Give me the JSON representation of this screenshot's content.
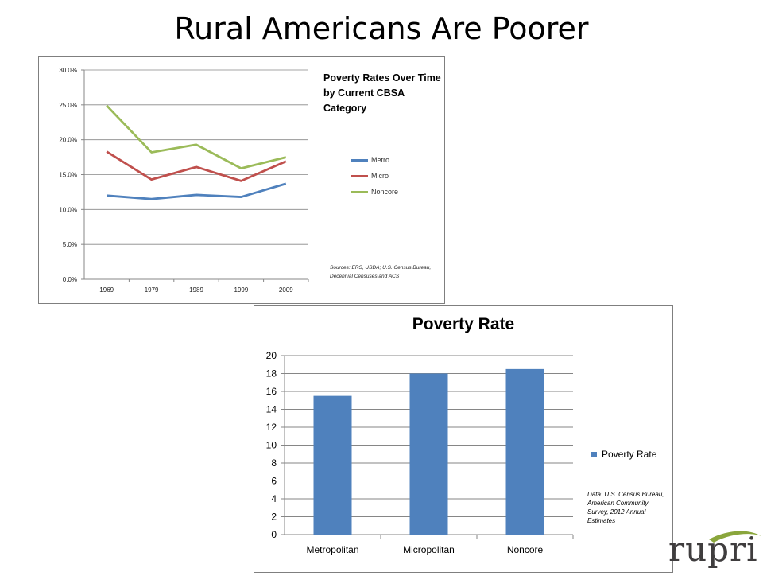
{
  "slide": {
    "title": "Rural Americans Are Poorer"
  },
  "logo": {
    "text": "rupri",
    "swoosh_color": "#8aa63c"
  },
  "chart_data": [
    {
      "type": "line",
      "title": "Poverty Rates Over Time by Current CBSA Category",
      "x": [
        "1969",
        "1979",
        "1989",
        "1999",
        "2009"
      ],
      "series": [
        {
          "name": "Metro",
          "color": "#4f81bd",
          "values": [
            12.0,
            11.5,
            12.1,
            11.8,
            13.7
          ]
        },
        {
          "name": "Micro",
          "color": "#c0504d",
          "values": [
            18.3,
            14.3,
            16.1,
            14.1,
            16.9
          ]
        },
        {
          "name": "Noncore",
          "color": "#9bbb59",
          "values": [
            24.9,
            18.2,
            19.3,
            15.9,
            17.5
          ]
        }
      ],
      "ylim": [
        0,
        30
      ],
      "yticks": [
        "0.0%",
        "5.0%",
        "10.0%",
        "15.0%",
        "20.0%",
        "25.0%",
        "30.0%"
      ],
      "grid": true,
      "legend": "right",
      "source": "Sources: ERS, USDA; U.S. Census Bureau, Decennial Censuses and ACS"
    },
    {
      "type": "bar",
      "title": "Poverty Rate",
      "categories": [
        "Metropolitan",
        "Micropolitan",
        "Noncore"
      ],
      "series": [
        {
          "name": "Poverty Rate",
          "color": "#4f81bd",
          "values": [
            15.5,
            18.0,
            18.5
          ]
        }
      ],
      "ylim": [
        0,
        20
      ],
      "yticks": [
        "0",
        "2",
        "4",
        "6",
        "8",
        "10",
        "12",
        "14",
        "16",
        "18",
        "20"
      ],
      "grid": true,
      "legend": "right",
      "source": "Data: U.S. Census Bureau, American Community Survey, 2012 Annual Estimates"
    }
  ]
}
